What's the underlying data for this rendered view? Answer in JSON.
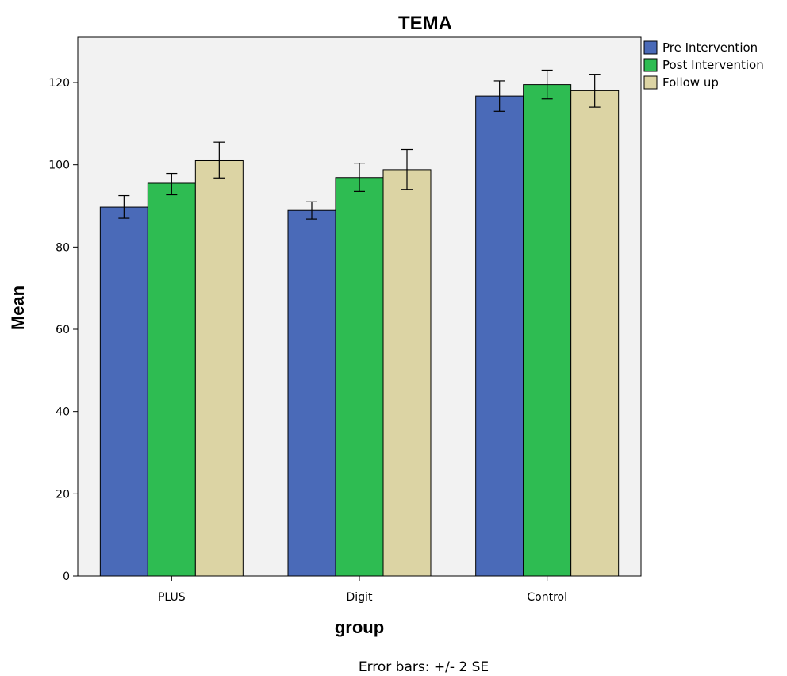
{
  "chart_data": {
    "type": "bar",
    "title": "TEMA",
    "xlabel": "group",
    "ylabel": "Mean",
    "categories": [
      "PLUS",
      "Digit",
      "Control"
    ],
    "ylim": [
      0,
      131
    ],
    "yticks": [
      0,
      20,
      40,
      60,
      80,
      100,
      120
    ],
    "grid": false,
    "legend_position": "top-right",
    "series": [
      {
        "name": "Pre Intervention",
        "color": "#4a6ab8",
        "values": [
          89.7,
          88.9,
          116.7
        ],
        "error_low": [
          87.0,
          86.8,
          113.0
        ],
        "error_high": [
          92.5,
          91.0,
          120.4
        ]
      },
      {
        "name": "Post Intervention",
        "color": "#2ebc52",
        "values": [
          95.5,
          96.9,
          119.5
        ],
        "error_low": [
          92.7,
          93.5,
          116.0
        ],
        "error_high": [
          97.9,
          100.4,
          123.0
        ]
      },
      {
        "name": "Follow up",
        "color": "#dcd4a4",
        "values": [
          101.0,
          98.8,
          118.0
        ],
        "error_low": [
          96.8,
          94.0,
          114.0
        ],
        "error_high": [
          105.5,
          103.7,
          122.0
        ]
      }
    ],
    "footnote": "Error bars: +/- 2 SE"
  }
}
